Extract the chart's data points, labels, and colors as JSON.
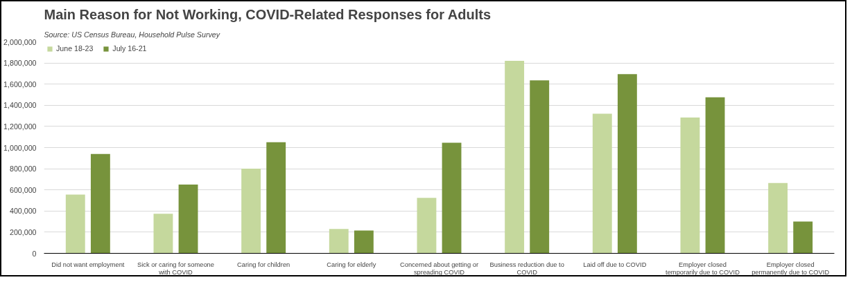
{
  "chart_data": {
    "type": "bar",
    "title": "Main Reason for Not Working, COVID-Related Responses for Adults",
    "annotations": [
      "Source:  US Census Bureau, Household Pulse Survey"
    ],
    "categories": [
      "Did not want employment",
      "Sick or caring for someone with COVID",
      "Caring for children",
      "Caring for elderly",
      "Concerned about getting or spreading COVID",
      "Business reduction due to COVID",
      "Laid off due to COVID",
      "Employer closed temporarily due to COVID",
      "Employer closed permanently due to COVID"
    ],
    "series": [
      {
        "name": "June 18-23",
        "color": "#c5d89d",
        "values": [
          555000,
          375000,
          800000,
          230000,
          525000,
          1820000,
          1320000,
          1285000,
          665000
        ]
      },
      {
        "name": "July 16-21",
        "color": "#77933c",
        "values": [
          940000,
          650000,
          1050000,
          215000,
          1045000,
          1635000,
          1695000,
          1475000,
          300000
        ]
      }
    ],
    "ylim": [
      0,
      2000000
    ],
    "yticks": [
      {
        "value": 0,
        "label": "0"
      },
      {
        "value": 200000,
        "label": "200,000"
      },
      {
        "value": 400000,
        "label": "400,000"
      },
      {
        "value": 600000,
        "label": "600,000"
      },
      {
        "value": 800000,
        "label": "800,000"
      },
      {
        "value": 1000000,
        "label": "1,000,000"
      },
      {
        "value": 1200000,
        "label": "1,200,000"
      },
      {
        "value": 1400000,
        "label": "1,400,000"
      },
      {
        "value": 1600000,
        "label": "1,600,000"
      },
      {
        "value": 1800000,
        "label": "1,800,000"
      },
      {
        "value": 2000000,
        "label": "2,000,000"
      }
    ],
    "grid": "y",
    "legend": "top left"
  }
}
